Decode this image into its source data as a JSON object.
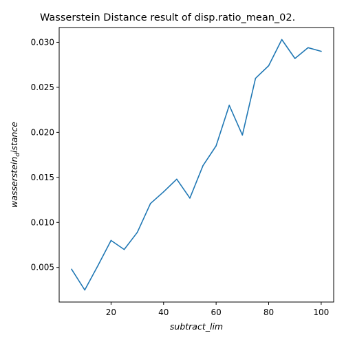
{
  "chart_data": {
    "type": "line",
    "title": "Wasserstein Distance result of disp.ratio_mean_02.",
    "xlabel": "subtract_lim",
    "ylabel_main": "wasserstein",
    "ylabel_sub": "d",
    "ylabel_tail": "istance",
    "xlim": [
      0.25,
      104.75
    ],
    "ylim": [
      0.00116,
      0.03164
    ],
    "x_ticks": [
      20,
      40,
      60,
      80,
      100
    ],
    "x_tick_labels": [
      "20",
      "40",
      "60",
      "80",
      "100"
    ],
    "y_ticks": [
      0.005,
      0.01,
      0.015,
      0.02,
      0.025,
      0.03
    ],
    "y_tick_labels": [
      "0.005",
      "0.010",
      "0.015",
      "0.020",
      "0.025",
      "0.030"
    ],
    "grid": false,
    "series": [
      {
        "color": "#1f77b4",
        "x": [
          5,
          10,
          15,
          20,
          25,
          30,
          35,
          40,
          45,
          50,
          55,
          60,
          65,
          70,
          75,
          80,
          85,
          90,
          95,
          100
        ],
        "y": [
          0.0048,
          0.0025,
          0.0052,
          0.008,
          0.007,
          0.0089,
          0.0121,
          0.0134,
          0.0148,
          0.0127,
          0.0163,
          0.0185,
          0.023,
          0.0197,
          0.026,
          0.0274,
          0.0303,
          0.0282,
          0.0294,
          0.029
        ]
      }
    ]
  }
}
